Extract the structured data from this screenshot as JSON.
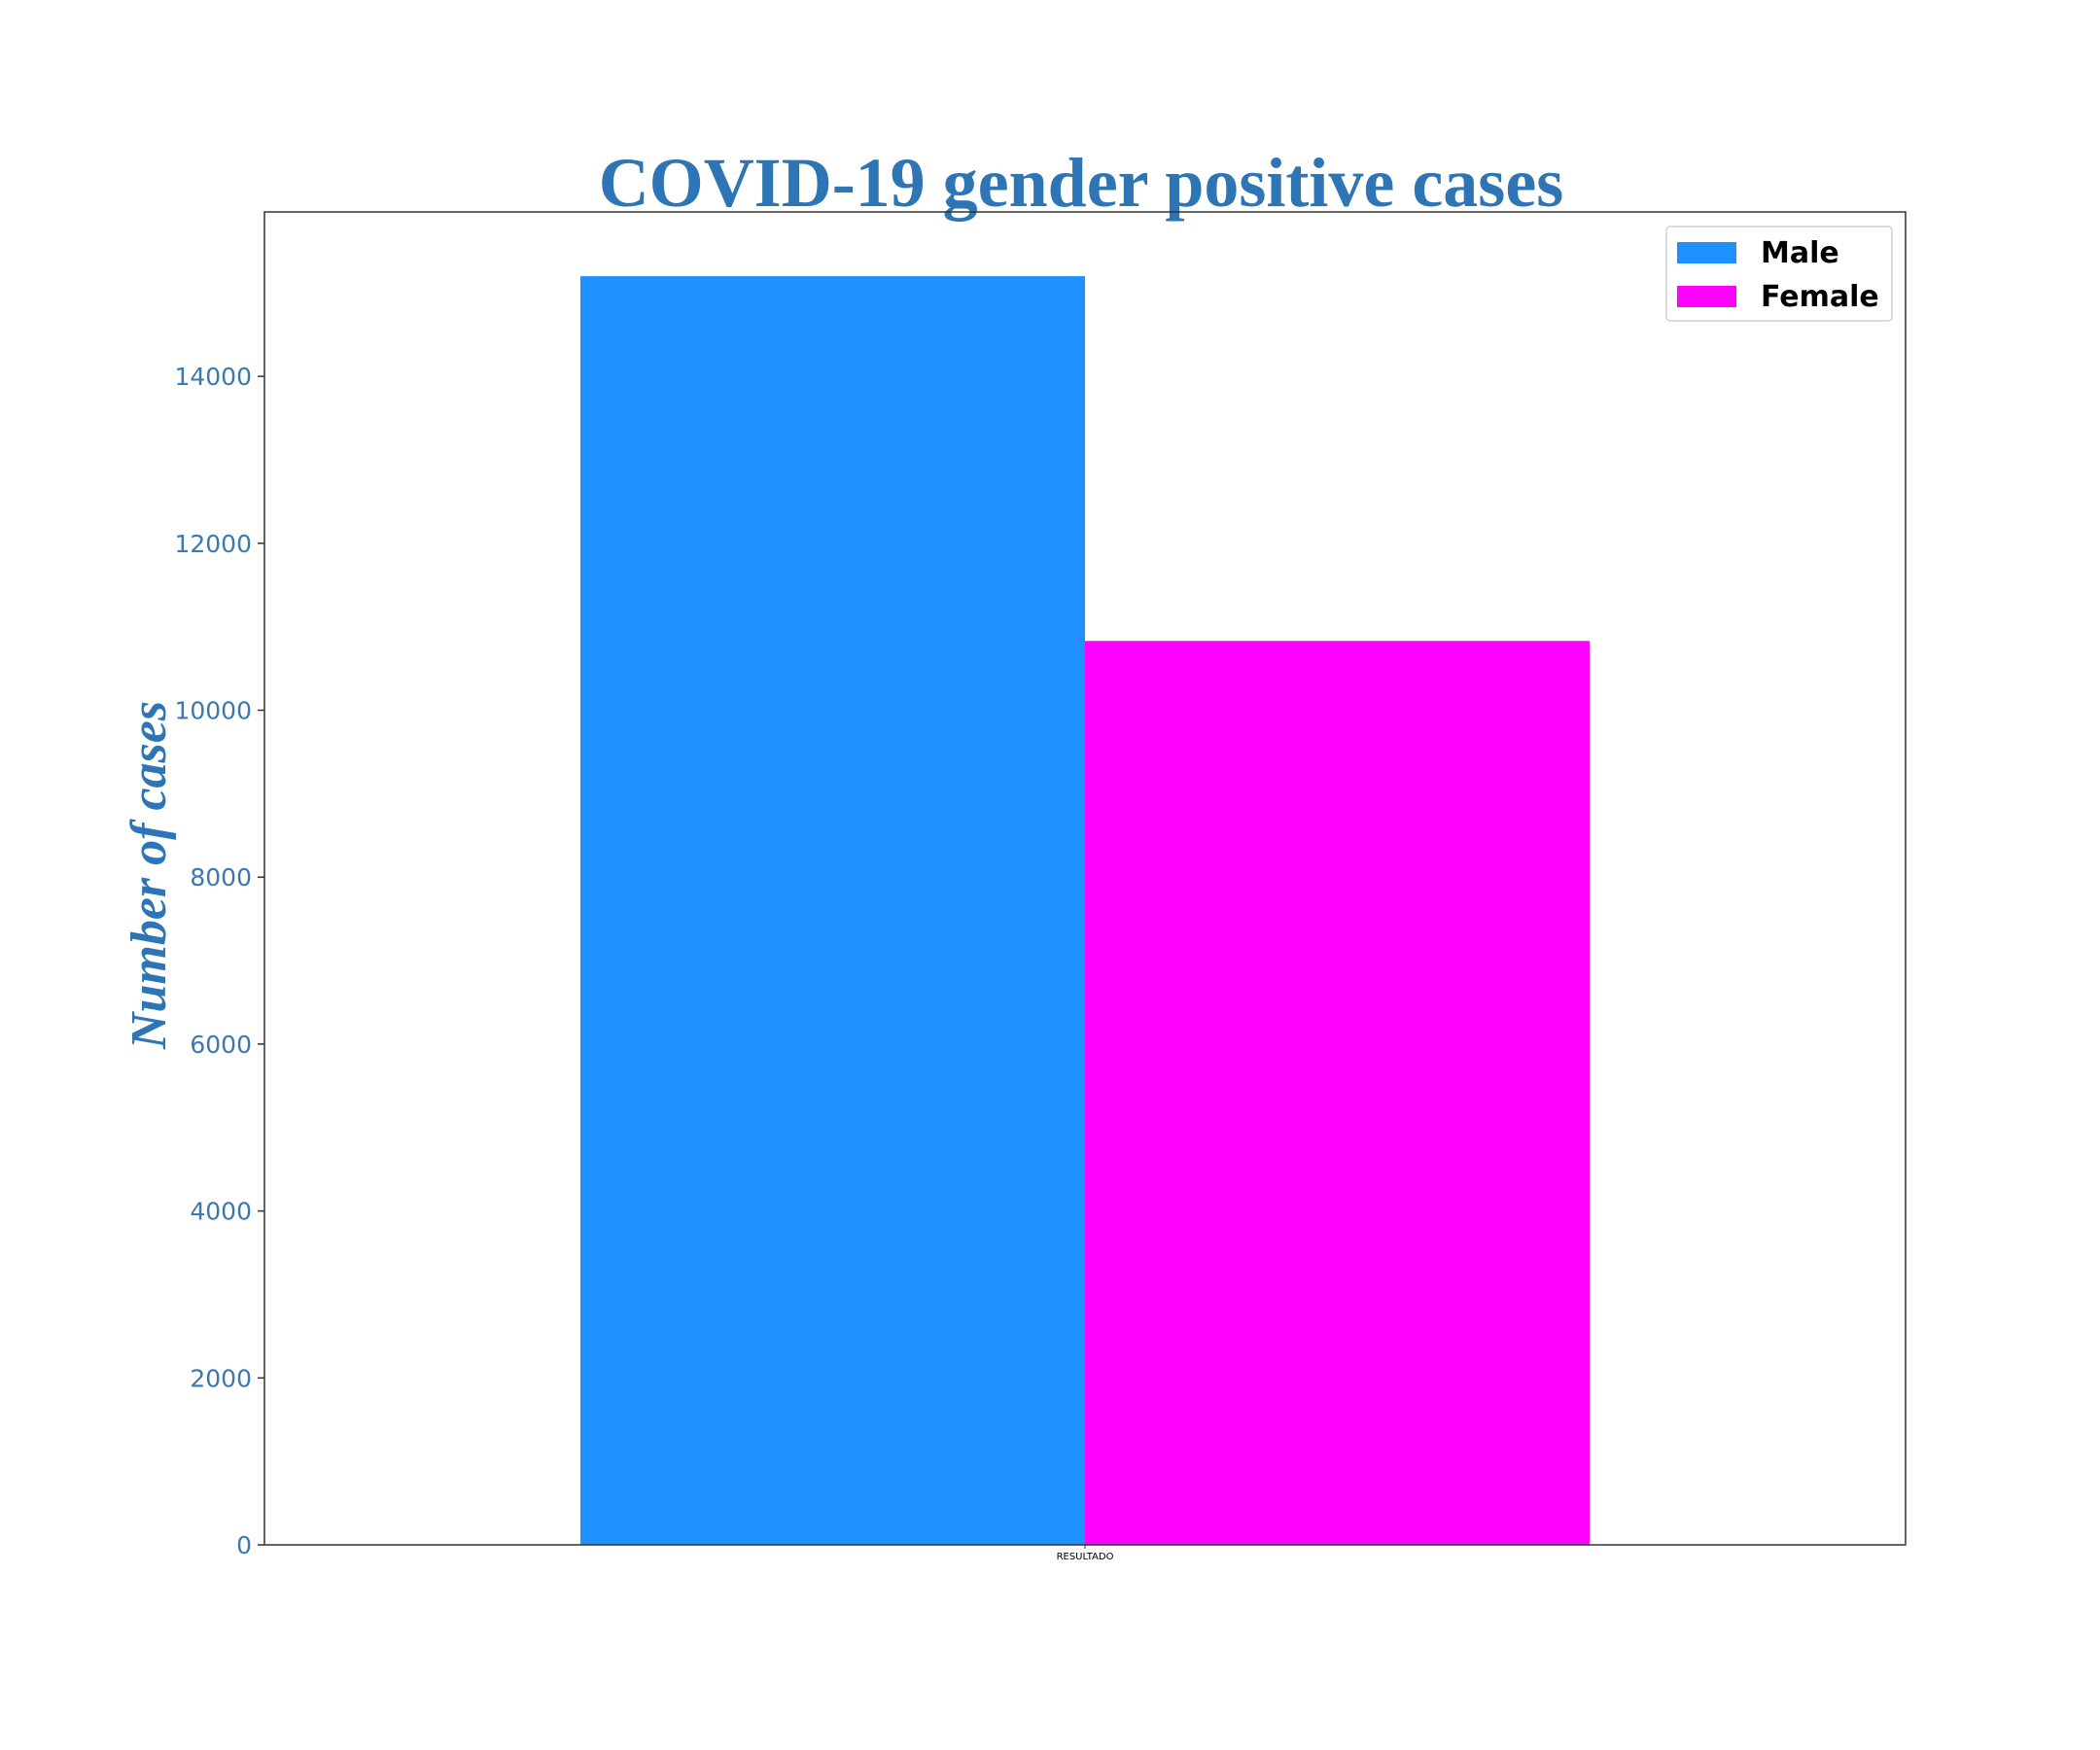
{
  "chart_data": {
    "type": "bar",
    "title": "COVID-19 gender positive cases",
    "xlabel": "",
    "ylabel": "Number of cases",
    "categories": [
      "RESULTADO"
    ],
    "series": [
      {
        "name": "Male",
        "values": [
          15200
        ],
        "color": "#1e90ff"
      },
      {
        "name": "Female",
        "values": [
          10830
        ],
        "color": "#ff00ff"
      }
    ],
    "ylim": [
      0,
      15970
    ],
    "yticks": [
      0,
      2000,
      4000,
      6000,
      8000,
      10000,
      12000,
      14000
    ],
    "grid": false,
    "legend_position": "top-right",
    "text_color": "#2e75b6",
    "tick_color": "#3a78b0"
  }
}
